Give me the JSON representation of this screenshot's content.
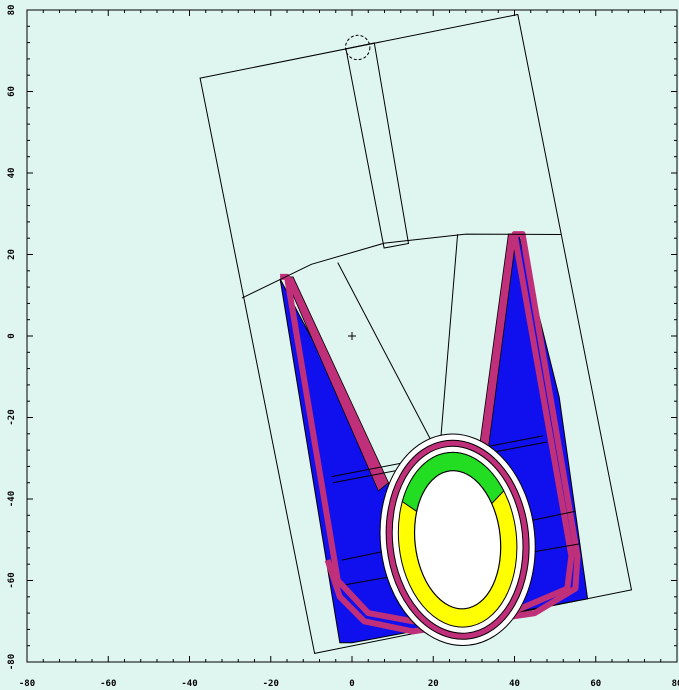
{
  "colors": {
    "background": "#dff5f0",
    "frame": "#000000",
    "yoke": "#1010ee",
    "coil_outer": "#c0307a",
    "coil_yellow": "#ffff00",
    "coil_green": "#22dd22",
    "bore": "#ffffff",
    "line": "#000000"
  },
  "axes": {
    "x_range": [
      -80,
      80
    ],
    "y_range": [
      -80,
      80
    ],
    "x_tick_labels": [
      "-80",
      "-60",
      "-40",
      "-20",
      "0",
      "20",
      "40",
      "60",
      "80"
    ],
    "y_tick_labels": [
      "80",
      "60",
      "40",
      "20",
      "0",
      "-20",
      "-40",
      "-60",
      "-80"
    ]
  },
  "geometry": {
    "outer_box": [
      [
        -37.4,
        63.3
      ],
      [
        40.8,
        78.9
      ],
      [
        68.8,
        -62.3
      ],
      [
        -9.2,
        -77.9
      ]
    ],
    "cut_line": [
      [
        -27.1,
        9.3
      ],
      [
        51.6,
        24.9
      ]
    ],
    "channel": [
      [
        -1.5,
        70.5
      ],
      [
        5.5,
        71.9
      ],
      [
        13.9,
        22.7
      ],
      [
        7.9,
        21.6
      ]
    ],
    "dashed_circle": {
      "cx": 1.4,
      "cy": 70.8,
      "r": 3
    },
    "upper_arc": [
      [
        -27.1,
        9.3
      ],
      [
        -10,
        17.6
      ],
      [
        8,
        22.8
      ],
      [
        28,
        25
      ],
      [
        51.6,
        24.9
      ]
    ],
    "blue_region": [
      [
        -17.7,
        14
      ],
      [
        -6.5,
        -7
      ],
      [
        10,
        -38
      ],
      [
        30,
        -40
      ],
      [
        33,
        -28
      ],
      [
        37,
        0
      ],
      [
        38.5,
        25
      ],
      [
        41,
        25
      ],
      [
        51,
        -15
      ],
      [
        58,
        -64.5
      ],
      [
        0,
        -75.3
      ],
      [
        -3,
        -75.3
      ]
    ],
    "left_arm_lines": [
      [
        [
          -3.5,
          18
        ],
        [
          21.5,
          -29.5
        ]
      ],
      [
        [
          26,
          25
        ],
        [
          21.5,
          -29.5
        ]
      ]
    ],
    "pink_left_arm": [
      [
        -16.5,
        14.5
      ],
      [
        -14.5,
        14.5
      ],
      [
        9,
        -36
      ],
      [
        6.5,
        -38
      ]
    ],
    "pink_right_arm": [
      [
        38.5,
        25
      ],
      [
        40.5,
        25
      ],
      [
        33.5,
        -28
      ],
      [
        31,
        -30
      ]
    ],
    "pink_bottom": [
      [
        -17.7,
        14.5
      ],
      [
        -16,
        14.5
      ],
      [
        -3.5,
        -60
      ],
      [
        4,
        -68
      ],
      [
        15,
        -70
      ],
      [
        40,
        -67.5
      ],
      [
        53,
        -62
      ],
      [
        54,
        -54
      ],
      [
        40,
        25
      ],
      [
        42,
        25
      ],
      [
        55.5,
        -54
      ],
      [
        55,
        -62
      ],
      [
        45,
        -68
      ],
      [
        15,
        -72.5
      ],
      [
        3,
        -70
      ],
      [
        -3,
        -64
      ],
      [
        -6,
        -55
      ]
    ],
    "horizontal_rails": [
      [
        [
          -5,
          -34.5
        ],
        [
          47,
          -24.5
        ]
      ],
      [
        [
          -4.7,
          -36
        ],
        [
          48,
          -26
        ]
      ],
      [
        [
          -2.5,
          -55
        ],
        [
          55,
          -43
        ]
      ],
      [
        [
          -1.5,
          -61
        ],
        [
          56,
          -51
        ]
      ]
    ],
    "bore_center": [
      26,
      -50
    ],
    "ring_outer": {
      "rx": 19,
      "ry": 26
    },
    "ring_pink": {
      "rx": 17.5,
      "ry": 24.5
    },
    "ring_white1": {
      "rx": 16,
      "ry": 23
    },
    "ring_yellow": {
      "rx": 14.5,
      "ry": 21.5
    },
    "ring_inner": {
      "rx": 10.5,
      "ry": 17
    },
    "crosshair": [
      0,
      0
    ]
  }
}
